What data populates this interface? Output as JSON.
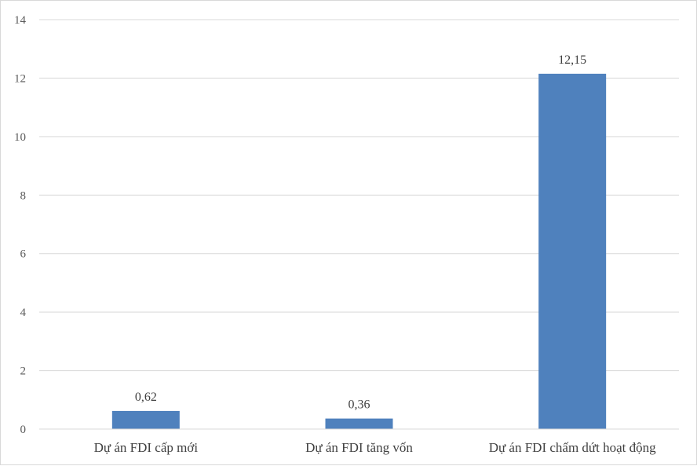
{
  "chart_data": {
    "type": "bar",
    "categories": [
      "Dự án FDI cấp mới",
      "Dự án FDI tăng vốn",
      "Dự án FDI chấm dứt hoạt động"
    ],
    "values": [
      0.62,
      0.36,
      12.15
    ],
    "data_labels": [
      "0,62",
      "0,36",
      "12,15"
    ],
    "y_ticks": [
      0,
      2,
      4,
      6,
      8,
      10,
      12,
      14
    ],
    "ylim": [
      0,
      14
    ],
    "title": "",
    "xlabel": "",
    "ylabel": "",
    "grid": true,
    "legend": "none",
    "bar_color": "#4f81bd",
    "grid_color": "#d9d9d9"
  }
}
